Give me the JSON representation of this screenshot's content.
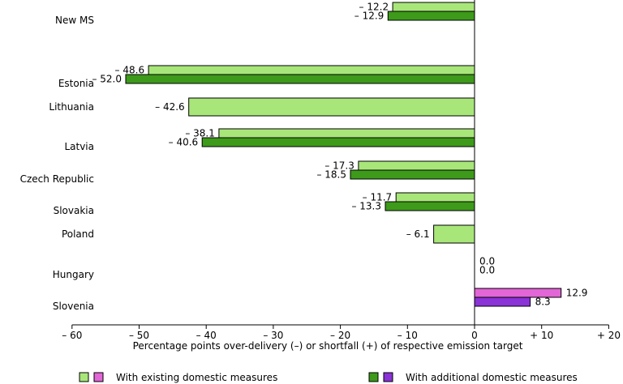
{
  "chart_data": {
    "type": "bar",
    "orientation": "horizontal",
    "xlabel": "Percentage points over-delivery (–) or shortfall (+) of respective emission target",
    "xlim": [
      -60,
      20
    ],
    "xticks": [
      -60,
      -50,
      -40,
      -30,
      -20,
      -10,
      0,
      10,
      20
    ],
    "xtick_labels": [
      "– 60",
      "– 50",
      "– 40",
      "– 30",
      "– 20",
      "– 10",
      "0",
      "+ 10",
      "+ 20"
    ],
    "categories": [
      "New MS",
      "Estonia",
      "Lithuania",
      "Latvia",
      "Czech Republic",
      "Slovakia",
      "Poland",
      "Hungary",
      "Slovenia"
    ],
    "grid": false,
    "legend_position": "bottom",
    "legend": [
      {
        "label": "With existing domestic measures",
        "colors": [
          "#a8e67a",
          "#e266d6"
        ]
      },
      {
        "label": "With additional domestic measures",
        "colors": [
          "#3d9a1a",
          "#8a33d6"
        ]
      }
    ],
    "series": [
      {
        "name": "With existing domestic measures",
        "values": [
          -12.2,
          -48.6,
          -42.6,
          -38.1,
          -17.3,
          -11.7,
          -6.1,
          0.0,
          12.9
        ],
        "labels": [
          "– 12.2",
          "– 48.6",
          "– 42.6",
          "– 38.1",
          "– 17.3",
          "– 11.7",
          "– 6.1",
          "0.0",
          "12.9"
        ],
        "colors": [
          "#a8e67a",
          "#a8e67a",
          "#a8e67a",
          "#a8e67a",
          "#a8e67a",
          "#a8e67a",
          "#a8e67a",
          "#a8e67a",
          "#e266d6"
        ]
      },
      {
        "name": "With additional domestic measures",
        "values": [
          -12.9,
          -52.0,
          null,
          -40.6,
          -18.5,
          -13.3,
          null,
          0.0,
          8.3
        ],
        "labels": [
          "– 12.9",
          "– 52.0",
          "",
          "– 40.6",
          "– 18.5",
          "– 13.3",
          "",
          "0.0",
          "8.3"
        ],
        "colors": [
          "#3d9a1a",
          "#3d9a1a",
          "#3d9a1a",
          "#3d9a1a",
          "#3d9a1a",
          "#3d9a1a",
          "#3d9a1a",
          "#3d9a1a",
          "#8a33d6"
        ]
      }
    ]
  }
}
